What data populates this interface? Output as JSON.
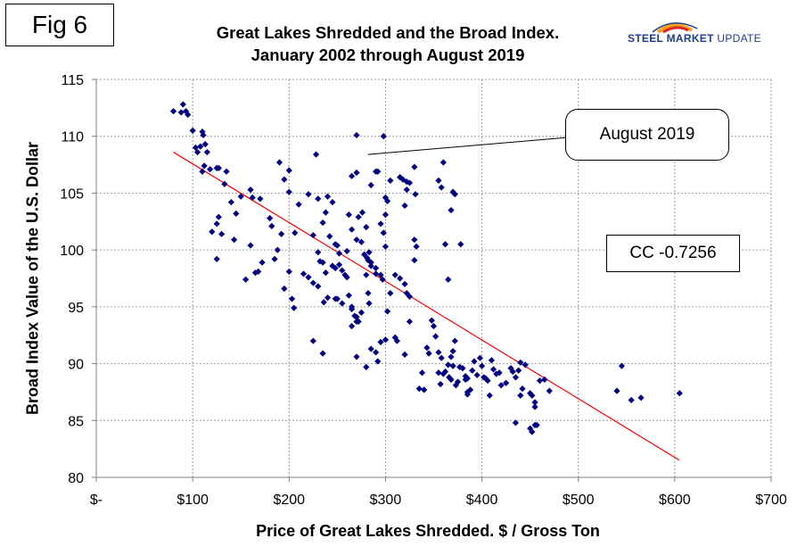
{
  "figure_label": "Fig 6",
  "logo": {
    "word1": "STEEL MARKET",
    "word2": "UPDATE",
    "colors": [
      "#f7a21b",
      "#e0262b",
      "#1f3d8a"
    ]
  },
  "chart_data": {
    "type": "scatter",
    "title_line1": "Great Lakes Shredded and the Broad Index.",
    "title_line2": "January 2002 through August 2019",
    "xlabel": "Price of Great Lakes Shredded. $ / Gross Ton",
    "ylabel": "Broad Index Value of the U.S. Dollar",
    "xlim": [
      0,
      700
    ],
    "ylim": [
      80,
      115
    ],
    "x_ticks": [
      0,
      100,
      200,
      300,
      400,
      500,
      600,
      700
    ],
    "x_tick_labels": [
      "$-",
      "$100",
      "$200",
      "$300",
      "$400",
      "$500",
      "$600",
      "$700"
    ],
    "y_ticks": [
      80,
      85,
      90,
      95,
      100,
      105,
      110,
      115
    ],
    "y_tick_labels": [
      "80",
      "85",
      "90",
      "95",
      "100",
      "105",
      "110",
      "115"
    ],
    "grid": {
      "horizontal": true,
      "vertical": true
    },
    "marker_color": "#000080",
    "trend_color": "#ff0000",
    "trendline": {
      "x": [
        80,
        605
      ],
      "y": [
        108.6,
        81.5
      ]
    },
    "callout": {
      "text": "August 2019",
      "point": [
        280,
        108.4
      ]
    },
    "annotation": "CC -0.7256",
    "points": [
      [
        80,
        112.2
      ],
      [
        88,
        112.1
      ],
      [
        90,
        112.8
      ],
      [
        95,
        111.9
      ],
      [
        93,
        112.2
      ],
      [
        100,
        110.5
      ],
      [
        103,
        109.0
      ],
      [
        105,
        108.6
      ],
      [
        110,
        110.4
      ],
      [
        111,
        110.1
      ],
      [
        108,
        109.1
      ],
      [
        113,
        109.3
      ],
      [
        115,
        108.6
      ],
      [
        112,
        107.4
      ],
      [
        118,
        107.1
      ],
      [
        110,
        106.9
      ],
      [
        125,
        107.2
      ],
      [
        127,
        107.2
      ],
      [
        135,
        106.9
      ],
      [
        133,
        105.8
      ],
      [
        140,
        104.2
      ],
      [
        145,
        103.2
      ],
      [
        120,
        101.6
      ],
      [
        125,
        102.3
      ],
      [
        127,
        102.9
      ],
      [
        130,
        101.4
      ],
      [
        125,
        99.2
      ],
      [
        143,
        100.9
      ],
      [
        150,
        104.7
      ],
      [
        160,
        105.3
      ],
      [
        162,
        104.6
      ],
      [
        170,
        104.5
      ],
      [
        155,
        97.4
      ],
      [
        160,
        100.4
      ],
      [
        168,
        98.1
      ],
      [
        165,
        98.0
      ],
      [
        172,
        98.9
      ],
      [
        180,
        102.8
      ],
      [
        182,
        102.1
      ],
      [
        185,
        99.2
      ],
      [
        190,
        107.7
      ],
      [
        195,
        106.2
      ],
      [
        200,
        105.1
      ],
      [
        200,
        107.0
      ],
      [
        192,
        101.4
      ],
      [
        188,
        100.0
      ],
      [
        195,
        96.6
      ],
      [
        200,
        98.1
      ],
      [
        203,
        95.7
      ],
      [
        205,
        94.9
      ],
      [
        206,
        101.5
      ],
      [
        210,
        104.0
      ],
      [
        215,
        97.9
      ],
      [
        220,
        104.9
      ],
      [
        225,
        101.3
      ],
      [
        228,
        108.4
      ],
      [
        230,
        104.5
      ],
      [
        235,
        102.4
      ],
      [
        238,
        103.3
      ],
      [
        240,
        104.7
      ],
      [
        245,
        104.2
      ],
      [
        242,
        101.2
      ],
      [
        248,
        100.5
      ],
      [
        250,
        100.4
      ],
      [
        252,
        99.7
      ],
      [
        230,
        99.8
      ],
      [
        232,
        99.0
      ],
      [
        235,
        98.9
      ],
      [
        238,
        98.0
      ],
      [
        225,
        97.1
      ],
      [
        220,
        97.6
      ],
      [
        230,
        96.8
      ],
      [
        236,
        95.4
      ],
      [
        240,
        95.8
      ],
      [
        225,
        92.0
      ],
      [
        235,
        90.9
      ],
      [
        245,
        98.6
      ],
      [
        248,
        98.4
      ],
      [
        252,
        98.7
      ],
      [
        255,
        98.2
      ],
      [
        258,
        97.8
      ],
      [
        260,
        97.6
      ],
      [
        262,
        96.0
      ],
      [
        265,
        95.0
      ],
      [
        265,
        94.8
      ],
      [
        268,
        94.2
      ],
      [
        270,
        93.7
      ],
      [
        265,
        93.3
      ],
      [
        255,
        95.3
      ],
      [
        250,
        95.7
      ],
      [
        248,
        95.7
      ],
      [
        260,
        99.9
      ],
      [
        270,
        100.9
      ],
      [
        265,
        101.8
      ],
      [
        262,
        103.1
      ],
      [
        265,
        106.5
      ],
      [
        270,
        106.8
      ],
      [
        270,
        110.1
      ],
      [
        272,
        102.9
      ],
      [
        276,
        103.3
      ],
      [
        280,
        102.0
      ],
      [
        275,
        100.7
      ],
      [
        278,
        99.6
      ],
      [
        281,
        99.3
      ],
      [
        285,
        98.9
      ],
      [
        282,
        99.1
      ],
      [
        283,
        99.8
      ],
      [
        285,
        105.7
      ],
      [
        290,
        106.9
      ],
      [
        295,
        102.3
      ],
      [
        298,
        101.5
      ],
      [
        300,
        100.3
      ],
      [
        300,
        103.1
      ],
      [
        298,
        110.0
      ],
      [
        300,
        104.6
      ],
      [
        302,
        104.3
      ],
      [
        305,
        106.1
      ],
      [
        292,
        106.9
      ],
      [
        285,
        98.6
      ],
      [
        290,
        97.9
      ],
      [
        290,
        98.4
      ],
      [
        295,
        97.8
      ],
      [
        297,
        97.4
      ],
      [
        280,
        97.8
      ],
      [
        282,
        96.2
      ],
      [
        283,
        95.3
      ],
      [
        275,
        94.5
      ],
      [
        270,
        94.1
      ],
      [
        272,
        93.7
      ],
      [
        270,
        90.6
      ],
      [
        280,
        89.7
      ],
      [
        285,
        91.3
      ],
      [
        290,
        91.0
      ],
      [
        292,
        90.2
      ],
      [
        295,
        91.9
      ],
      [
        300,
        92.1
      ],
      [
        302,
        94.6
      ],
      [
        305,
        96.2
      ],
      [
        310,
        97.8
      ],
      [
        315,
        97.5
      ],
      [
        320,
        97.0
      ],
      [
        322,
        96.2
      ],
      [
        325,
        95.9
      ],
      [
        325,
        93.7
      ],
      [
        320,
        90.8
      ],
      [
        312,
        92.0
      ],
      [
        310,
        92.3
      ],
      [
        315,
        106.4
      ],
      [
        318,
        106.2
      ],
      [
        322,
        106.0
      ],
      [
        325,
        105.9
      ],
      [
        320,
        103.9
      ],
      [
        322,
        105.3
      ],
      [
        330,
        107.3
      ],
      [
        331,
        104.9
      ],
      [
        330,
        100.9
      ],
      [
        332,
        100.3
      ],
      [
        330,
        99.1
      ],
      [
        335,
        87.8
      ],
      [
        338,
        89.2
      ],
      [
        340,
        87.7
      ],
      [
        343,
        91.4
      ],
      [
        345,
        90.9
      ],
      [
        348,
        93.8
      ],
      [
        350,
        93.3
      ],
      [
        352,
        92.4
      ],
      [
        355,
        91.0
      ],
      [
        355,
        89.2
      ],
      [
        357,
        88.2
      ],
      [
        360,
        89.1
      ],
      [
        362,
        89.3
      ],
      [
        358,
        90.5
      ],
      [
        365,
        89.9
      ],
      [
        368,
        90.6
      ],
      [
        370,
        91.1
      ],
      [
        372,
        92.0
      ],
      [
        366,
        88.8
      ],
      [
        368,
        88.6
      ],
      [
        370,
        89.8
      ],
      [
        373,
        88.1
      ],
      [
        375,
        88.4
      ],
      [
        377,
        89.7
      ],
      [
        380,
        89.6
      ],
      [
        383,
        88.6
      ],
      [
        385,
        88.7
      ],
      [
        388,
        87.7
      ],
      [
        390,
        89.4
      ],
      [
        392,
        90.2
      ],
      [
        395,
        89.0
      ],
      [
        398,
        90.5
      ],
      [
        400,
        89.8
      ],
      [
        402,
        88.8
      ],
      [
        404,
        88.7
      ],
      [
        406,
        88.5
      ],
      [
        410,
        90.3
      ],
      [
        412,
        89.5
      ],
      [
        415,
        89.1
      ],
      [
        418,
        89.2
      ],
      [
        408,
        87.2
      ],
      [
        420,
        88.1
      ],
      [
        425,
        88.3
      ],
      [
        430,
        89.6
      ],
      [
        432,
        89.3
      ],
      [
        435,
        88.8
      ],
      [
        438,
        89.4
      ],
      [
        440,
        87.2
      ],
      [
        442,
        87.8
      ],
      [
        445,
        89.9
      ],
      [
        440,
        90.1
      ],
      [
        450,
        87.4
      ],
      [
        452,
        87.2
      ],
      [
        455,
        86.6
      ],
      [
        455,
        86.2
      ],
      [
        450,
        84.3
      ],
      [
        452,
        84.0
      ],
      [
        455,
        84.6
      ],
      [
        457,
        84.6
      ],
      [
        435,
        84.8
      ],
      [
        460,
        88.5
      ],
      [
        465,
        88.6
      ],
      [
        470,
        87.6
      ],
      [
        355,
        106.1
      ],
      [
        358,
        105.5
      ],
      [
        360,
        107.7
      ],
      [
        362,
        100.5
      ],
      [
        365,
        97.4
      ],
      [
        368,
        103.5
      ],
      [
        370,
        105.1
      ],
      [
        372,
        104.9
      ],
      [
        378,
        100.5
      ],
      [
        383,
        88.9
      ],
      [
        385,
        87.3
      ],
      [
        385,
        87.5
      ],
      [
        545,
        89.8
      ],
      [
        540,
        87.6
      ],
      [
        555,
        86.8
      ],
      [
        565,
        87.0
      ],
      [
        605,
        87.4
      ]
    ]
  }
}
